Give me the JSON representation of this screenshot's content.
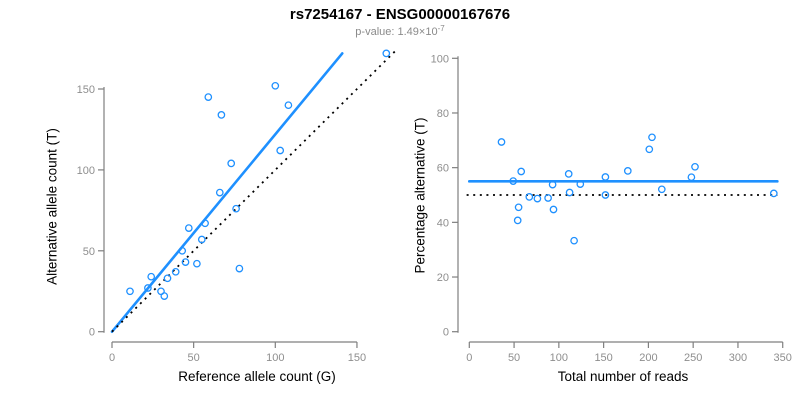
{
  "figure": {
    "title": "rs7254167 - ENSG00000167676",
    "subtitle_prefix": "p-value: 1.49×10",
    "subtitle_exponent": "-7"
  },
  "colors": {
    "accent_blue": "#1E90FF",
    "identity_black": "#000000",
    "axis_gray": "#7F7F7F",
    "tick_label_gray": "#8E8E8E",
    "subtitle_gray": "#8A8A8A",
    "title_black": "#000000",
    "background": "#FFFFFF"
  },
  "point_style": {
    "radius": 3.2,
    "stroke_width": 1.3,
    "fill": "none"
  },
  "chart_data": [
    {
      "type": "scatter",
      "panel": "left",
      "xlabel": "Reference allele count (G)",
      "ylabel": "Alternative allele count (T)",
      "xticks": [
        0,
        50,
        100,
        150
      ],
      "yticks": [
        0,
        50,
        100,
        150
      ],
      "xlim": [
        0,
        172
      ],
      "ylim": [
        0,
        175
      ],
      "grid": false,
      "legend": "none",
      "points": [
        [
          11,
          25
        ],
        [
          22,
          27
        ],
        [
          24,
          34
        ],
        [
          30,
          25
        ],
        [
          32,
          22
        ],
        [
          34,
          33
        ],
        [
          39,
          37
        ],
        [
          45,
          43
        ],
        [
          52,
          42
        ],
        [
          43,
          50
        ],
        [
          47,
          64
        ],
        [
          55,
          57
        ],
        [
          57,
          67
        ],
        [
          78,
          39
        ],
        [
          59,
          145
        ],
        [
          66,
          86
        ],
        [
          76,
          76
        ],
        [
          67,
          134
        ],
        [
          73,
          104
        ],
        [
          100,
          152
        ],
        [
          103,
          112
        ],
        [
          108,
          140
        ],
        [
          168,
          172
        ]
      ],
      "lines": [
        {
          "name": "fitted-ratio-line",
          "style": "solid",
          "color_key": "accent_blue",
          "width": 2.6,
          "from": [
            0,
            0
          ],
          "to": [
            141,
            172
          ],
          "slope": 1.22
        },
        {
          "name": "identity-line",
          "style": "dotted",
          "color_key": "identity_black",
          "width": 1.8,
          "from": [
            0,
            0
          ],
          "to": [
            175,
            175
          ],
          "slope": 1
        }
      ]
    },
    {
      "type": "scatter",
      "panel": "right",
      "xlabel": "Total number of reads",
      "ylabel": "Percentage alternative (T)",
      "xticks": [
        0,
        50,
        100,
        150,
        200,
        250,
        300,
        350
      ],
      "yticks": [
        0,
        20,
        40,
        60,
        80,
        100
      ],
      "xlim": [
        0,
        350
      ],
      "ylim": [
        0,
        100
      ],
      "grid": false,
      "legend": "none",
      "points": [
        [
          36,
          69.4
        ],
        [
          49,
          55.1
        ],
        [
          58,
          58.6
        ],
        [
          55,
          45.5
        ],
        [
          54,
          40.7
        ],
        [
          67,
          49.3
        ],
        [
          76,
          48.7
        ],
        [
          88,
          48.9
        ],
        [
          94,
          44.7
        ],
        [
          93,
          53.8
        ],
        [
          111,
          57.7
        ],
        [
          112,
          50.9
        ],
        [
          124,
          54.0
        ],
        [
          117,
          33.3
        ],
        [
          204,
          71.1
        ],
        [
          152,
          56.6
        ],
        [
          152,
          50.0
        ],
        [
          201,
          66.7
        ],
        [
          177,
          58.8
        ],
        [
          252,
          60.3
        ],
        [
          215,
          52.1
        ],
        [
          248,
          56.5
        ],
        [
          340,
          50.6
        ]
      ],
      "lines": [
        {
          "name": "fitted-percentage-line",
          "style": "solid",
          "color_key": "accent_blue",
          "width": 2.6,
          "from": [
            0,
            55
          ],
          "to": [
            344,
            55
          ],
          "y": 55
        },
        {
          "name": "null-50pct-line",
          "style": "dotted",
          "color_key": "identity_black",
          "width": 1.8,
          "from": [
            -3,
            50
          ],
          "to": [
            344,
            50
          ],
          "y": 50
        }
      ]
    }
  ]
}
